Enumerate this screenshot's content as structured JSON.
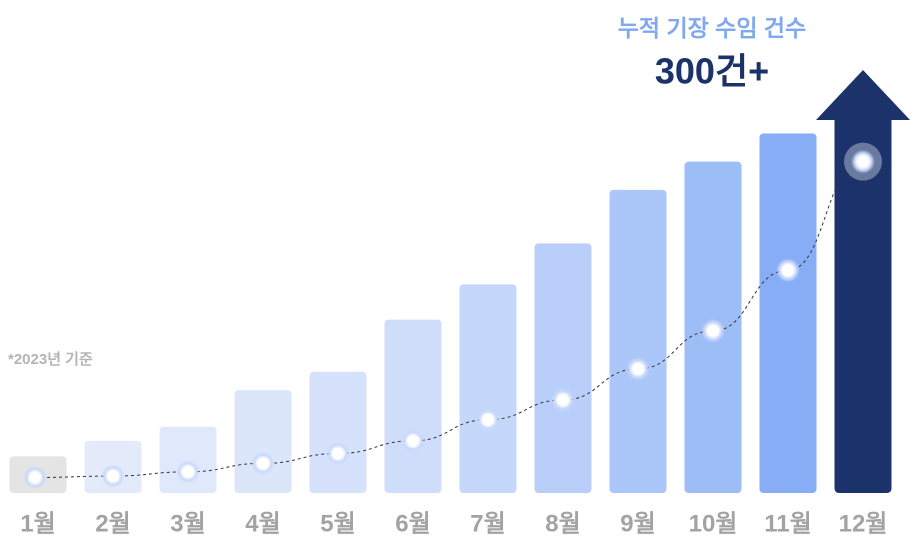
{
  "chart_data": {
    "type": "bar",
    "title": "누적 기장 수임 건수",
    "headline": "300건+",
    "note": "*2023년 기준",
    "categories": [
      "1월",
      "2월",
      "3월",
      "4월",
      "5월",
      "6월",
      "7월",
      "8월",
      "9월",
      "10월",
      "11월",
      "12월"
    ],
    "values": [
      26,
      37,
      47,
      73,
      86,
      123,
      148,
      177,
      215,
      235,
      255,
      300
    ],
    "trend": [
      11,
      12,
      15,
      21,
      28,
      37,
      52,
      66,
      88,
      115,
      158,
      235
    ],
    "colors": [
      "#e4e4e4",
      "#e3ebfb",
      "#e0e9fb",
      "#dbe6fb",
      "#d6e2fb",
      "#cfddfa",
      "#c5d7fa",
      "#b9cff9",
      "#abc6f8",
      "#9dbdf7",
      "#86adf5",
      "#1b326a"
    ],
    "ylim": [
      0,
      300
    ]
  }
}
